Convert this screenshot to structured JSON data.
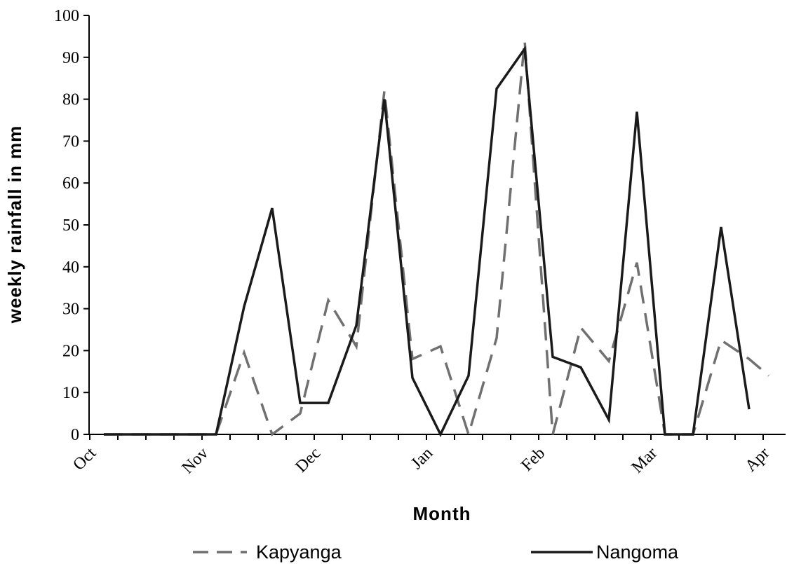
{
  "chart_data": {
    "type": "line",
    "title": "",
    "xlabel": "Month",
    "ylabel": "weekly rainfall in mm",
    "ylim": [
      0,
      100
    ],
    "yticks": [
      0,
      10,
      20,
      30,
      40,
      50,
      60,
      70,
      80,
      90,
      100
    ],
    "xlim": [
      0,
      24.5
    ],
    "month_ticks": [
      {
        "label": "Oct",
        "x": 0
      },
      {
        "label": "Nov",
        "x": 4
      },
      {
        "label": "Dec",
        "x": 8
      },
      {
        "label": "Jan",
        "x": 12
      },
      {
        "label": "Feb",
        "x": 16
      },
      {
        "label": "Mar",
        "x": 20
      },
      {
        "label": "Apr",
        "x": 24
      }
    ],
    "grid": false,
    "legend_position": "bottom",
    "series": [
      {
        "name": "Kapyanga",
        "style": "dashed",
        "color": "#707070",
        "x": [
          0,
          1,
          2,
          3,
          4,
          5,
          6,
          7,
          8,
          9,
          10,
          11,
          12,
          13,
          14,
          15,
          16,
          17,
          18,
          19,
          20,
          21,
          22,
          23,
          23.7
        ],
        "y": [
          0,
          0,
          0,
          0,
          0,
          19.5,
          0,
          5,
          32,
          21,
          82,
          18,
          21,
          0,
          23,
          94,
          0,
          25.5,
          17.5,
          41,
          0,
          0,
          22.5,
          18,
          14
        ]
      },
      {
        "name": "Nangoma",
        "style": "solid",
        "color": "#1a1a1a",
        "x": [
          0,
          1,
          2,
          3,
          4,
          5,
          6,
          7,
          8,
          9,
          10,
          11,
          12,
          13,
          14,
          15,
          16,
          17,
          18,
          19,
          20,
          21,
          22,
          23
        ],
        "y": [
          0,
          0,
          0,
          0,
          0,
          30.5,
          54,
          7.5,
          7.5,
          26,
          80,
          13.5,
          0,
          14,
          82.5,
          92,
          18.5,
          16,
          3.5,
          77,
          0,
          0,
          49.5,
          6
        ]
      }
    ]
  }
}
